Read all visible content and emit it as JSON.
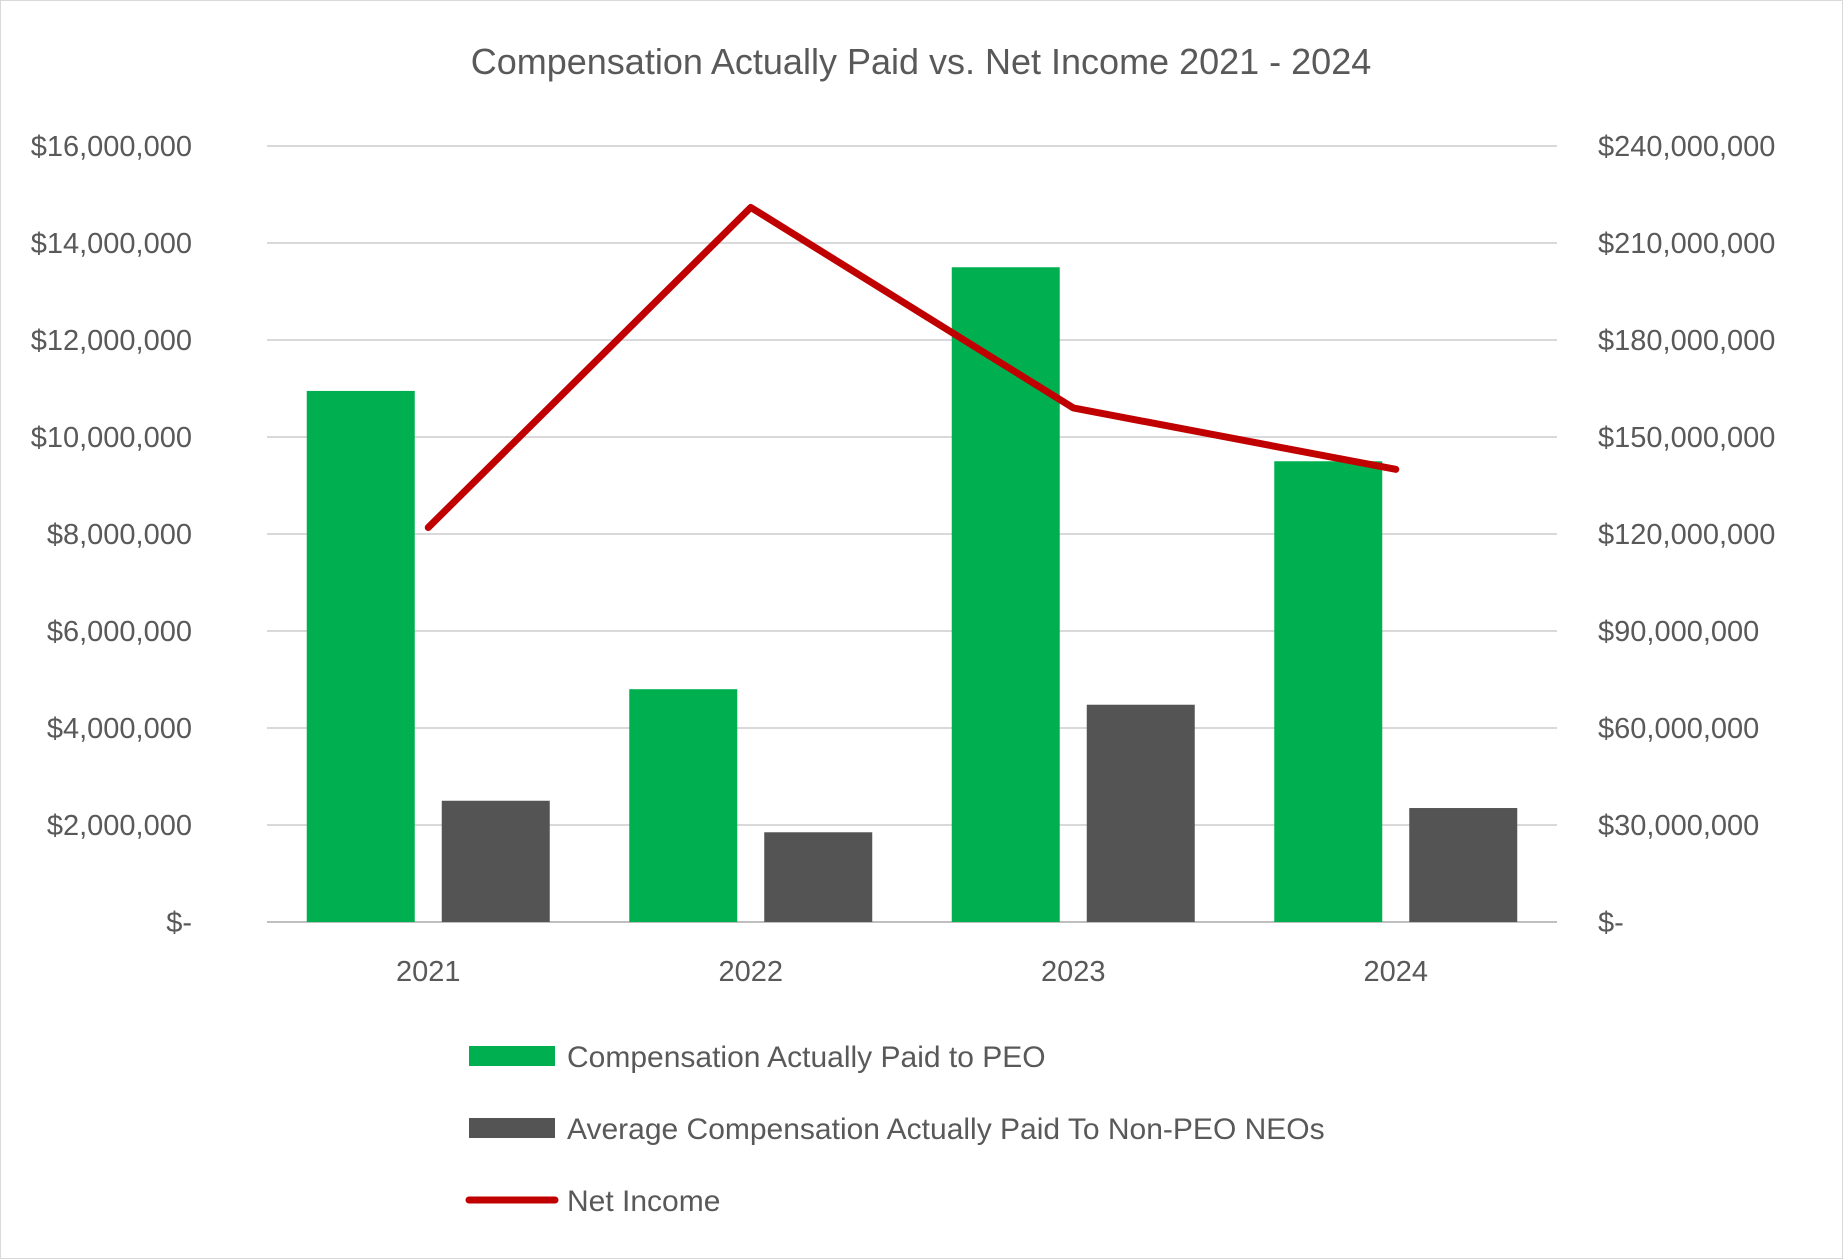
{
  "chart_data": {
    "type": "bar",
    "title": "Compensation Actually Paid vs. Net Income 2021 - 2024",
    "categories": [
      "2021",
      "2022",
      "2023",
      "2024"
    ],
    "series": [
      {
        "name": "Compensation Actually Paid to PEO",
        "kind": "bar",
        "axis": "left",
        "color": "#00b050",
        "values": [
          10950000,
          4800000,
          13500000,
          9500000
        ]
      },
      {
        "name": "Average Compensation Actually Paid To Non-PEO NEOs",
        "kind": "bar",
        "axis": "left",
        "color": "#545454",
        "values": [
          2500000,
          1850000,
          4480000,
          2350000
        ]
      },
      {
        "name": "Net Income",
        "kind": "line",
        "axis": "right",
        "color": "#c00000",
        "values": [
          122000000,
          221000000,
          159000000,
          140000000
        ]
      }
    ],
    "y_left": {
      "ylim": [
        0,
        16000000
      ],
      "ticks": [
        0,
        2000000,
        4000000,
        6000000,
        8000000,
        10000000,
        12000000,
        14000000,
        16000000
      ],
      "tick_labels": [
        "$-",
        "$2,000,000",
        "$4,000,000",
        "$6,000,000",
        "$8,000,000",
        "$10,000,000",
        "$12,000,000",
        "$14,000,000",
        "$16,000,000"
      ]
    },
    "y_right": {
      "ylim": [
        0,
        240000000
      ],
      "ticks": [
        0,
        30000000,
        60000000,
        90000000,
        120000000,
        150000000,
        180000000,
        210000000,
        240000000
      ],
      "tick_labels": [
        "$-",
        "$30,000,000",
        "$60,000,000",
        "$90,000,000",
        "$120,000,000",
        "$150,000,000",
        "$180,000,000",
        "$210,000,000",
        "$240,000,000"
      ]
    },
    "grid": true,
    "legend_position": "bottom"
  }
}
